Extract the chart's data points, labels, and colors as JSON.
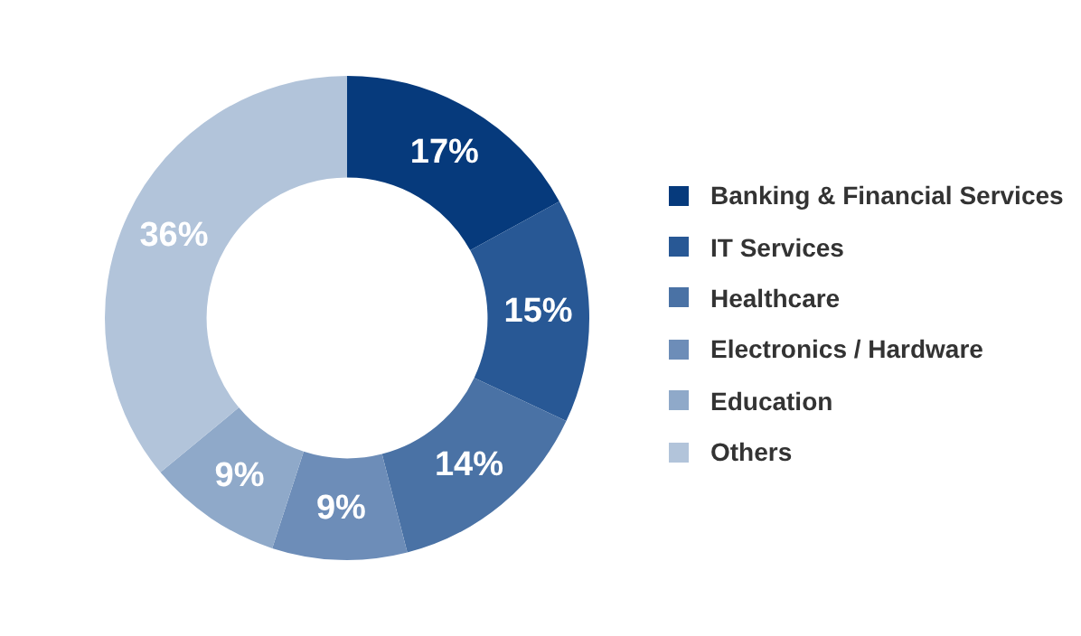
{
  "chart_data": {
    "type": "donut",
    "categories": [
      "Banking & Financial Services",
      "IT Services",
      "Healthcare",
      "Electronics / Hardware",
      "Education",
      "Others"
    ],
    "values": [
      17,
      15,
      14,
      9,
      9,
      36
    ],
    "colors": [
      "#063a7c",
      "#285895",
      "#4a72a5",
      "#6d8db8",
      "#8fa9c9",
      "#b2c4da"
    ],
    "value_labels": [
      "17%",
      "15%",
      "14%",
      "9%",
      "9%",
      "36%"
    ],
    "legend": "right"
  }
}
